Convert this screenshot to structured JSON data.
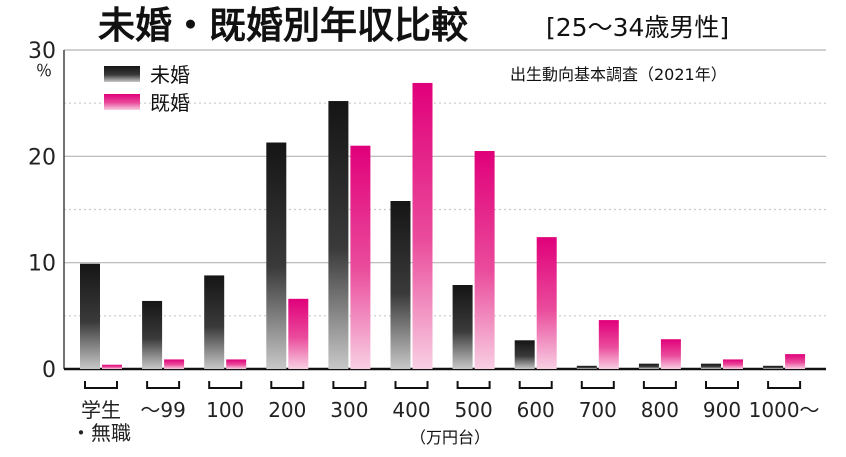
{
  "title": "未婚・既婚別年収比較",
  "subtitle": "[25～34歳男性]",
  "source": "出生動向基本調査（2021年）",
  "y_unit": "％",
  "x_axis_title": "（万円台）",
  "chart_data": {
    "type": "bar",
    "title": "未婚・既婚別年収比較 [25～34歳男性]",
    "xlabel": "（万円台）",
    "ylabel": "％",
    "ylim": [
      0,
      30
    ],
    "yticks": [
      "0",
      "10",
      "20",
      "30"
    ],
    "grid": true,
    "legend_position": "top-left",
    "categories": [
      "学生・無職",
      "～99",
      "100",
      "200",
      "300",
      "400",
      "500",
      "600",
      "700",
      "800",
      "900",
      "1000～"
    ],
    "category_lines": [
      [
        "学生",
        "・無職"
      ],
      [
        "～99"
      ],
      [
        "100"
      ],
      [
        "200"
      ],
      [
        "300"
      ],
      [
        "400"
      ],
      [
        "500"
      ],
      [
        "600"
      ],
      [
        "700"
      ],
      [
        "800"
      ],
      [
        "900"
      ],
      [
        "1000～"
      ]
    ],
    "series": [
      {
        "name": "未婚",
        "color": "#1a1a1a",
        "values": [
          9.9,
          6.4,
          8.8,
          21.3,
          25.2,
          15.8,
          7.9,
          2.7,
          0.3,
          0.5,
          0.5,
          0.3
        ]
      },
      {
        "name": "既婚",
        "color": "#e2127f",
        "values": [
          0.4,
          0.9,
          0.9,
          6.6,
          21.0,
          26.9,
          20.5,
          12.4,
          4.6,
          2.8,
          0.9,
          1.4
        ]
      }
    ]
  }
}
